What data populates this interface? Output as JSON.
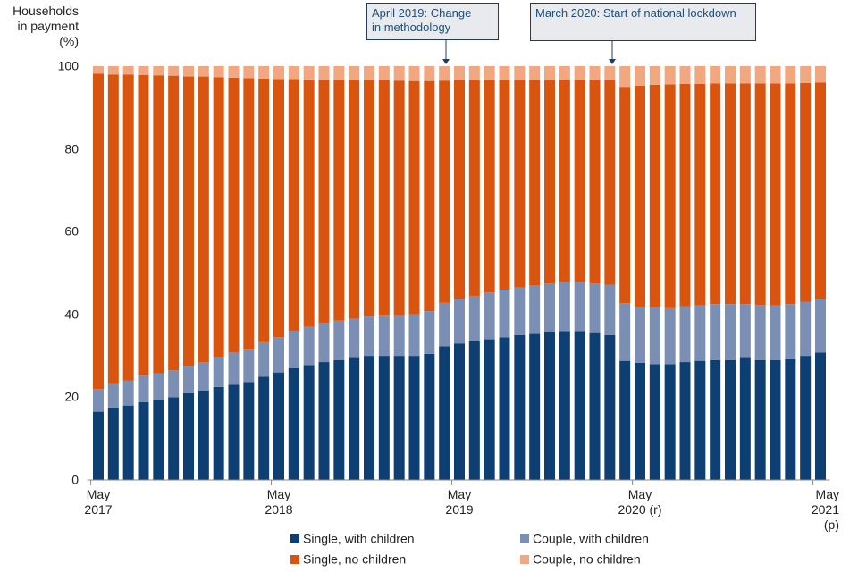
{
  "chart_data": {
    "type": "stacked_bar",
    "y_label": "Households\nin payment\n(%)",
    "annotations": [
      "April 2019: Change\nin methodology",
      "March 2020: Start of national lockdown"
    ],
    "categories": [
      "May\n2017",
      null,
      null,
      null,
      null,
      null,
      null,
      null,
      null,
      null,
      null,
      null,
      "May\n2018",
      null,
      null,
      null,
      null,
      null,
      null,
      null,
      null,
      null,
      null,
      null,
      "May\n2019",
      null,
      null,
      null,
      null,
      null,
      null,
      null,
      null,
      null,
      null,
      null,
      "May\n2020 (r)",
      null,
      null,
      null,
      null,
      null,
      null,
      null,
      null,
      null,
      null,
      null,
      "May\n2021 (p)"
    ],
    "ylim": [
      0,
      100
    ],
    "yticks": [
      0,
      20,
      40,
      60,
      80,
      100
    ],
    "series": [
      {
        "name": "Single, with children",
        "color": "#0e3f73",
        "values": [
          16.5,
          17.5,
          18,
          18.8,
          19.3,
          20,
          21,
          21.5,
          22.5,
          23,
          23.7,
          25,
          26,
          27,
          27.8,
          28.5,
          29,
          29.5,
          30,
          30,
          30,
          30,
          30.5,
          32.3,
          33,
          33.5,
          34,
          34.5,
          35,
          35.3,
          35.7,
          36,
          36,
          35.5,
          35,
          28.8,
          28.3,
          28,
          28,
          28.5,
          28.8,
          29,
          29,
          29.5,
          29,
          29,
          29.2,
          30,
          30.8
        ]
      },
      {
        "name": "Couple, with children",
        "color": "#7b8fb5",
        "values": [
          5.5,
          5.7,
          6,
          6.4,
          6.5,
          6.5,
          6.5,
          7,
          7.3,
          7.8,
          7.8,
          8.3,
          8.5,
          9,
          9.2,
          9.5,
          9.5,
          9.5,
          9.5,
          9.7,
          9.8,
          10,
          10.3,
          10.5,
          10.8,
          11,
          11.3,
          11.5,
          11.5,
          11.7,
          11.8,
          11.8,
          11.8,
          12,
          12.2,
          13.9,
          13.5,
          13.8,
          13.5,
          13.5,
          13.4,
          13.5,
          13.5,
          13,
          13.3,
          13.2,
          13.3,
          13,
          13
        ]
      },
      {
        "name": "Single, no children",
        "color": "#d9540f",
        "values": [
          76.2,
          74.8,
          74,
          72.7,
          72,
          71.2,
          70,
          69,
          67.5,
          66.4,
          65.6,
          63.7,
          62.4,
          60.9,
          59.8,
          58.7,
          58.2,
          57.6,
          57.1,
          56.9,
          56.7,
          56.4,
          55.6,
          53.7,
          52.8,
          52.1,
          51.4,
          50.7,
          50.2,
          49.7,
          49.2,
          48.8,
          48.8,
          49.1,
          49.4,
          52.3,
          53.5,
          53.7,
          54.1,
          53.7,
          53.5,
          53.3,
          53.3,
          53.3,
          53.5,
          53.6,
          53.3,
          52.9,
          52.2
        ]
      },
      {
        "name": "Couple, no children",
        "color": "#f1a77f",
        "values": [
          1.8,
          2,
          2,
          2.1,
          2.2,
          2.3,
          2.5,
          2.5,
          2.7,
          2.8,
          2.9,
          3,
          3.1,
          3.1,
          3.2,
          3.3,
          3.3,
          3.4,
          3.4,
          3.4,
          3.5,
          3.6,
          3.6,
          3.5,
          3.4,
          3.4,
          3.3,
          3.3,
          3.3,
          3.3,
          3.3,
          3.4,
          3.4,
          3.4,
          3.4,
          5,
          4.7,
          4.5,
          4.4,
          4.3,
          4.3,
          4.2,
          4.2,
          4.2,
          4.2,
          4.2,
          4.2,
          4.1,
          4
        ]
      }
    ]
  }
}
